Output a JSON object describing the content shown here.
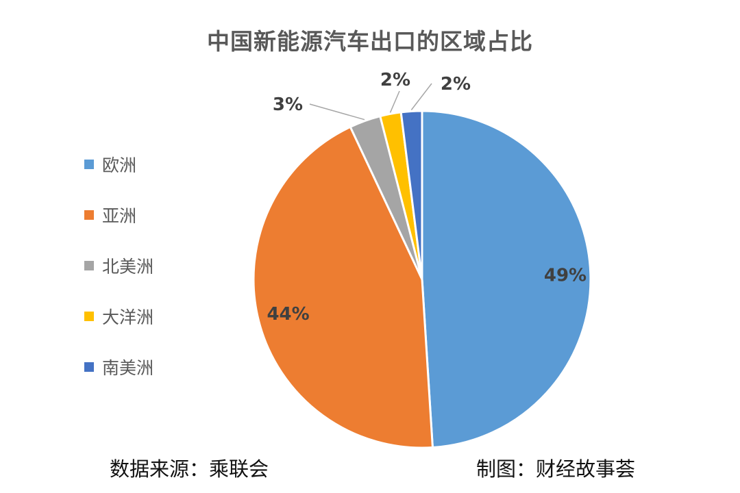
{
  "chart_data": {
    "type": "pie",
    "title": "中国新能源汽车出口的区域占比",
    "categories": [
      "欧洲",
      "亚洲",
      "北美洲",
      "大洋洲",
      "南美洲"
    ],
    "values": [
      49,
      44,
      3,
      2,
      2
    ],
    "data_labels": [
      "49%",
      "44%",
      "3%",
      "2%",
      "2%"
    ],
    "colors": [
      "#5B9BD5",
      "#ED7D31",
      "#A5A5A5",
      "#FFC000",
      "#4472C4"
    ],
    "legend_position": "left",
    "start_angle": "12 o'clock, clockwise"
  },
  "footer": {
    "source": "数据来源：乘联会",
    "credit": "制图：财经故事荟"
  }
}
